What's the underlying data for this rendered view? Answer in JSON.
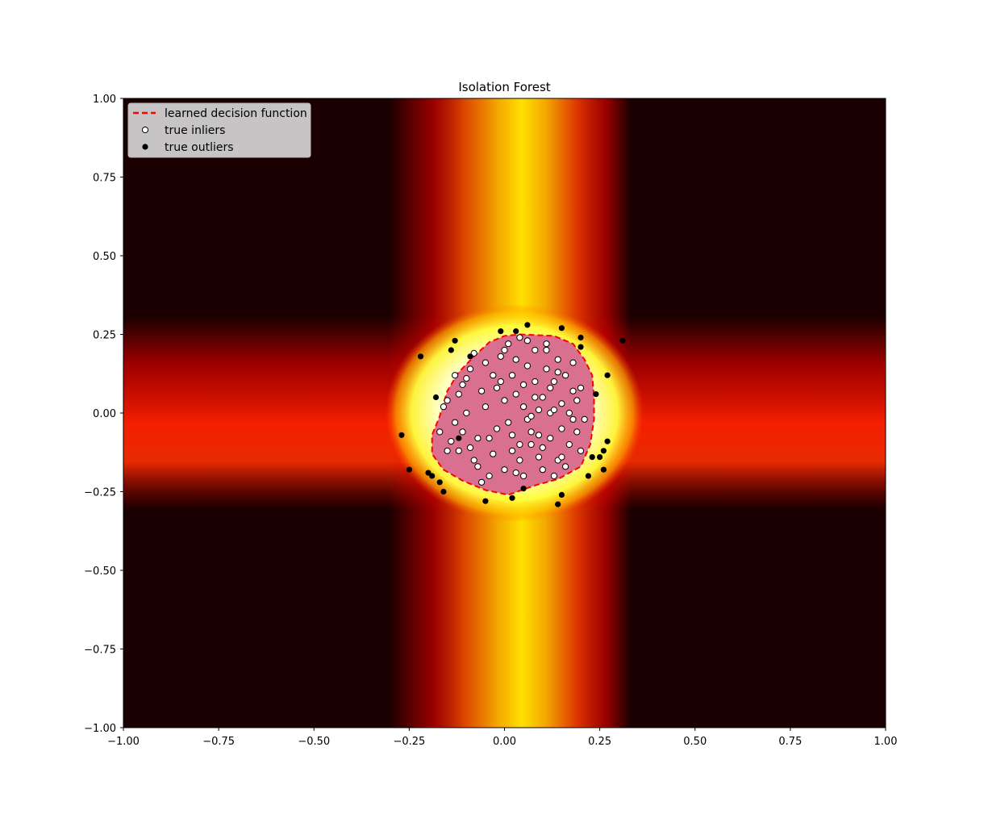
{
  "chart_data": {
    "type": "scatter",
    "title": "Isolation Forest",
    "xlabel": "",
    "ylabel": "",
    "xlim": [
      -1.0,
      1.0
    ],
    "ylim": [
      -1.0,
      1.0
    ],
    "xticks": [
      "−1.00",
      "−0.75",
      "−0.50",
      "−0.25",
      "0.00",
      "0.25",
      "0.50",
      "0.75",
      "1.00"
    ],
    "yticks": [
      "1.00",
      "0.75",
      "0.50",
      "0.25",
      "0.00",
      "−0.25",
      "−0.50",
      "−0.75",
      "−1.00"
    ],
    "background": "filled contour of anomaly score (hot colormap): bright band centered near x≈0.05 and y≈−0.05, dark elsewhere",
    "legend": {
      "position": "top-left",
      "entries": [
        "learned decision function",
        "true inliers",
        "true outliers"
      ]
    },
    "decision_boundary": {
      "label": "learned decision function",
      "color": "#ff0000",
      "style": "dashed",
      "fill": "#d9708f",
      "x": [
        0.04,
        0.13,
        0.18,
        0.21,
        0.23,
        0.235,
        0.235,
        0.225,
        0.2,
        0.14,
        0.08,
        0.01,
        -0.05,
        -0.11,
        -0.16,
        -0.19,
        -0.19,
        -0.17,
        -0.15,
        -0.12,
        -0.08,
        -0.04,
        0.0,
        0.04
      ],
      "y": [
        0.25,
        0.245,
        0.22,
        0.17,
        0.12,
        0.05,
        -0.02,
        -0.1,
        -0.17,
        -0.21,
        -0.23,
        -0.26,
        -0.245,
        -0.215,
        -0.18,
        -0.13,
        -0.07,
        -0.01,
        0.07,
        0.13,
        0.18,
        0.225,
        0.245,
        0.25
      ]
    },
    "series": [
      {
        "name": "true inliers",
        "marker": "white circle, black edge",
        "x": [
          0.05,
          -0.02,
          0.08,
          0.12,
          -0.06,
          0.15,
          0.02,
          -0.1,
          0.18,
          0.06,
          -0.03,
          0.1,
          -0.13,
          0.0,
          0.2,
          0.04,
          -0.08,
          0.14,
          -0.15,
          0.07,
          0.11,
          -0.04,
          0.17,
          0.01,
          -0.11,
          0.09,
          0.13,
          -0.07,
          0.03,
          0.16,
          -0.01,
          -0.12,
          0.19,
          0.06,
          -0.05,
          0.1,
          0.02,
          -0.09,
          0.14,
          0.08,
          -0.14,
          0.05,
          0.12,
          -0.03,
          0.18,
          0.0,
          -0.06,
          0.11,
          0.07,
          -0.1,
          0.15,
          0.03,
          -0.16,
          0.09,
          0.2,
          -0.02,
          0.13,
          0.04,
          -0.08,
          0.17,
          0.01,
          -0.12,
          0.1,
          0.06,
          -0.04,
          0.16,
          0.08,
          -0.15,
          0.12,
          0.02,
          -0.07,
          0.19,
          0.05,
          -0.11,
          0.14,
          0.0,
          -0.13,
          0.09,
          0.21,
          -0.05,
          0.11,
          0.03,
          -0.09,
          0.15,
          0.07,
          -0.17,
          0.13,
          -0.01,
          0.18,
          0.04
        ],
        "y": [
          0.02,
          -0.05,
          0.1,
          -0.08,
          0.07,
          0.03,
          -0.12,
          0.0,
          -0.02,
          0.15,
          0.12,
          0.05,
          -0.03,
          -0.18,
          0.08,
          -0.1,
          -0.15,
          0.17,
          0.04,
          -0.06,
          0.2,
          -0.2,
          -0.1,
          0.22,
          0.09,
          -0.14,
          0.1,
          -0.08,
          0.06,
          0.12,
          0.18,
          -0.12,
          -0.06,
          -0.02,
          0.02,
          -0.18,
          -0.07,
          0.14,
          -0.15,
          0.2,
          -0.09,
          0.09,
          0.0,
          -0.13,
          0.16,
          0.04,
          -0.22,
          0.14,
          -0.1,
          0.11,
          -0.05,
          0.17,
          0.02,
          0.01,
          -0.12,
          0.08,
          -0.2,
          -0.15,
          0.19,
          0.0,
          -0.03,
          0.06,
          -0.11,
          0.23,
          -0.08,
          -0.17,
          0.05,
          -0.12,
          0.08,
          0.12,
          -0.17,
          0.04,
          -0.2,
          -0.06,
          0.13,
          0.2,
          0.12,
          -0.07,
          -0.02,
          0.16,
          0.22,
          -0.19,
          -0.11,
          -0.14,
          -0.01,
          -0.06,
          0.01,
          0.1,
          0.07,
          0.24
        ]
      },
      {
        "name": "true outliers",
        "marker": "black circle",
        "x": [
          -0.27,
          -0.25,
          -0.22,
          -0.2,
          -0.19,
          -0.18,
          -0.17,
          -0.16,
          -0.14,
          -0.13,
          -0.12,
          -0.09,
          -0.05,
          -0.01,
          0.02,
          0.03,
          0.05,
          0.06,
          0.14,
          0.15,
          0.15,
          0.2,
          0.2,
          0.22,
          0.23,
          0.24,
          0.25,
          0.26,
          0.26,
          0.27,
          0.27,
          0.31
        ],
        "y": [
          -0.07,
          -0.18,
          0.18,
          -0.19,
          -0.2,
          0.05,
          -0.22,
          -0.25,
          0.2,
          0.23,
          -0.08,
          0.18,
          -0.28,
          0.26,
          -0.27,
          0.26,
          -0.24,
          0.28,
          -0.29,
          -0.26,
          0.27,
          0.24,
          0.21,
          -0.2,
          -0.14,
          0.06,
          -0.14,
          -0.18,
          -0.12,
          -0.09,
          0.12,
          0.23
        ]
      }
    ]
  }
}
